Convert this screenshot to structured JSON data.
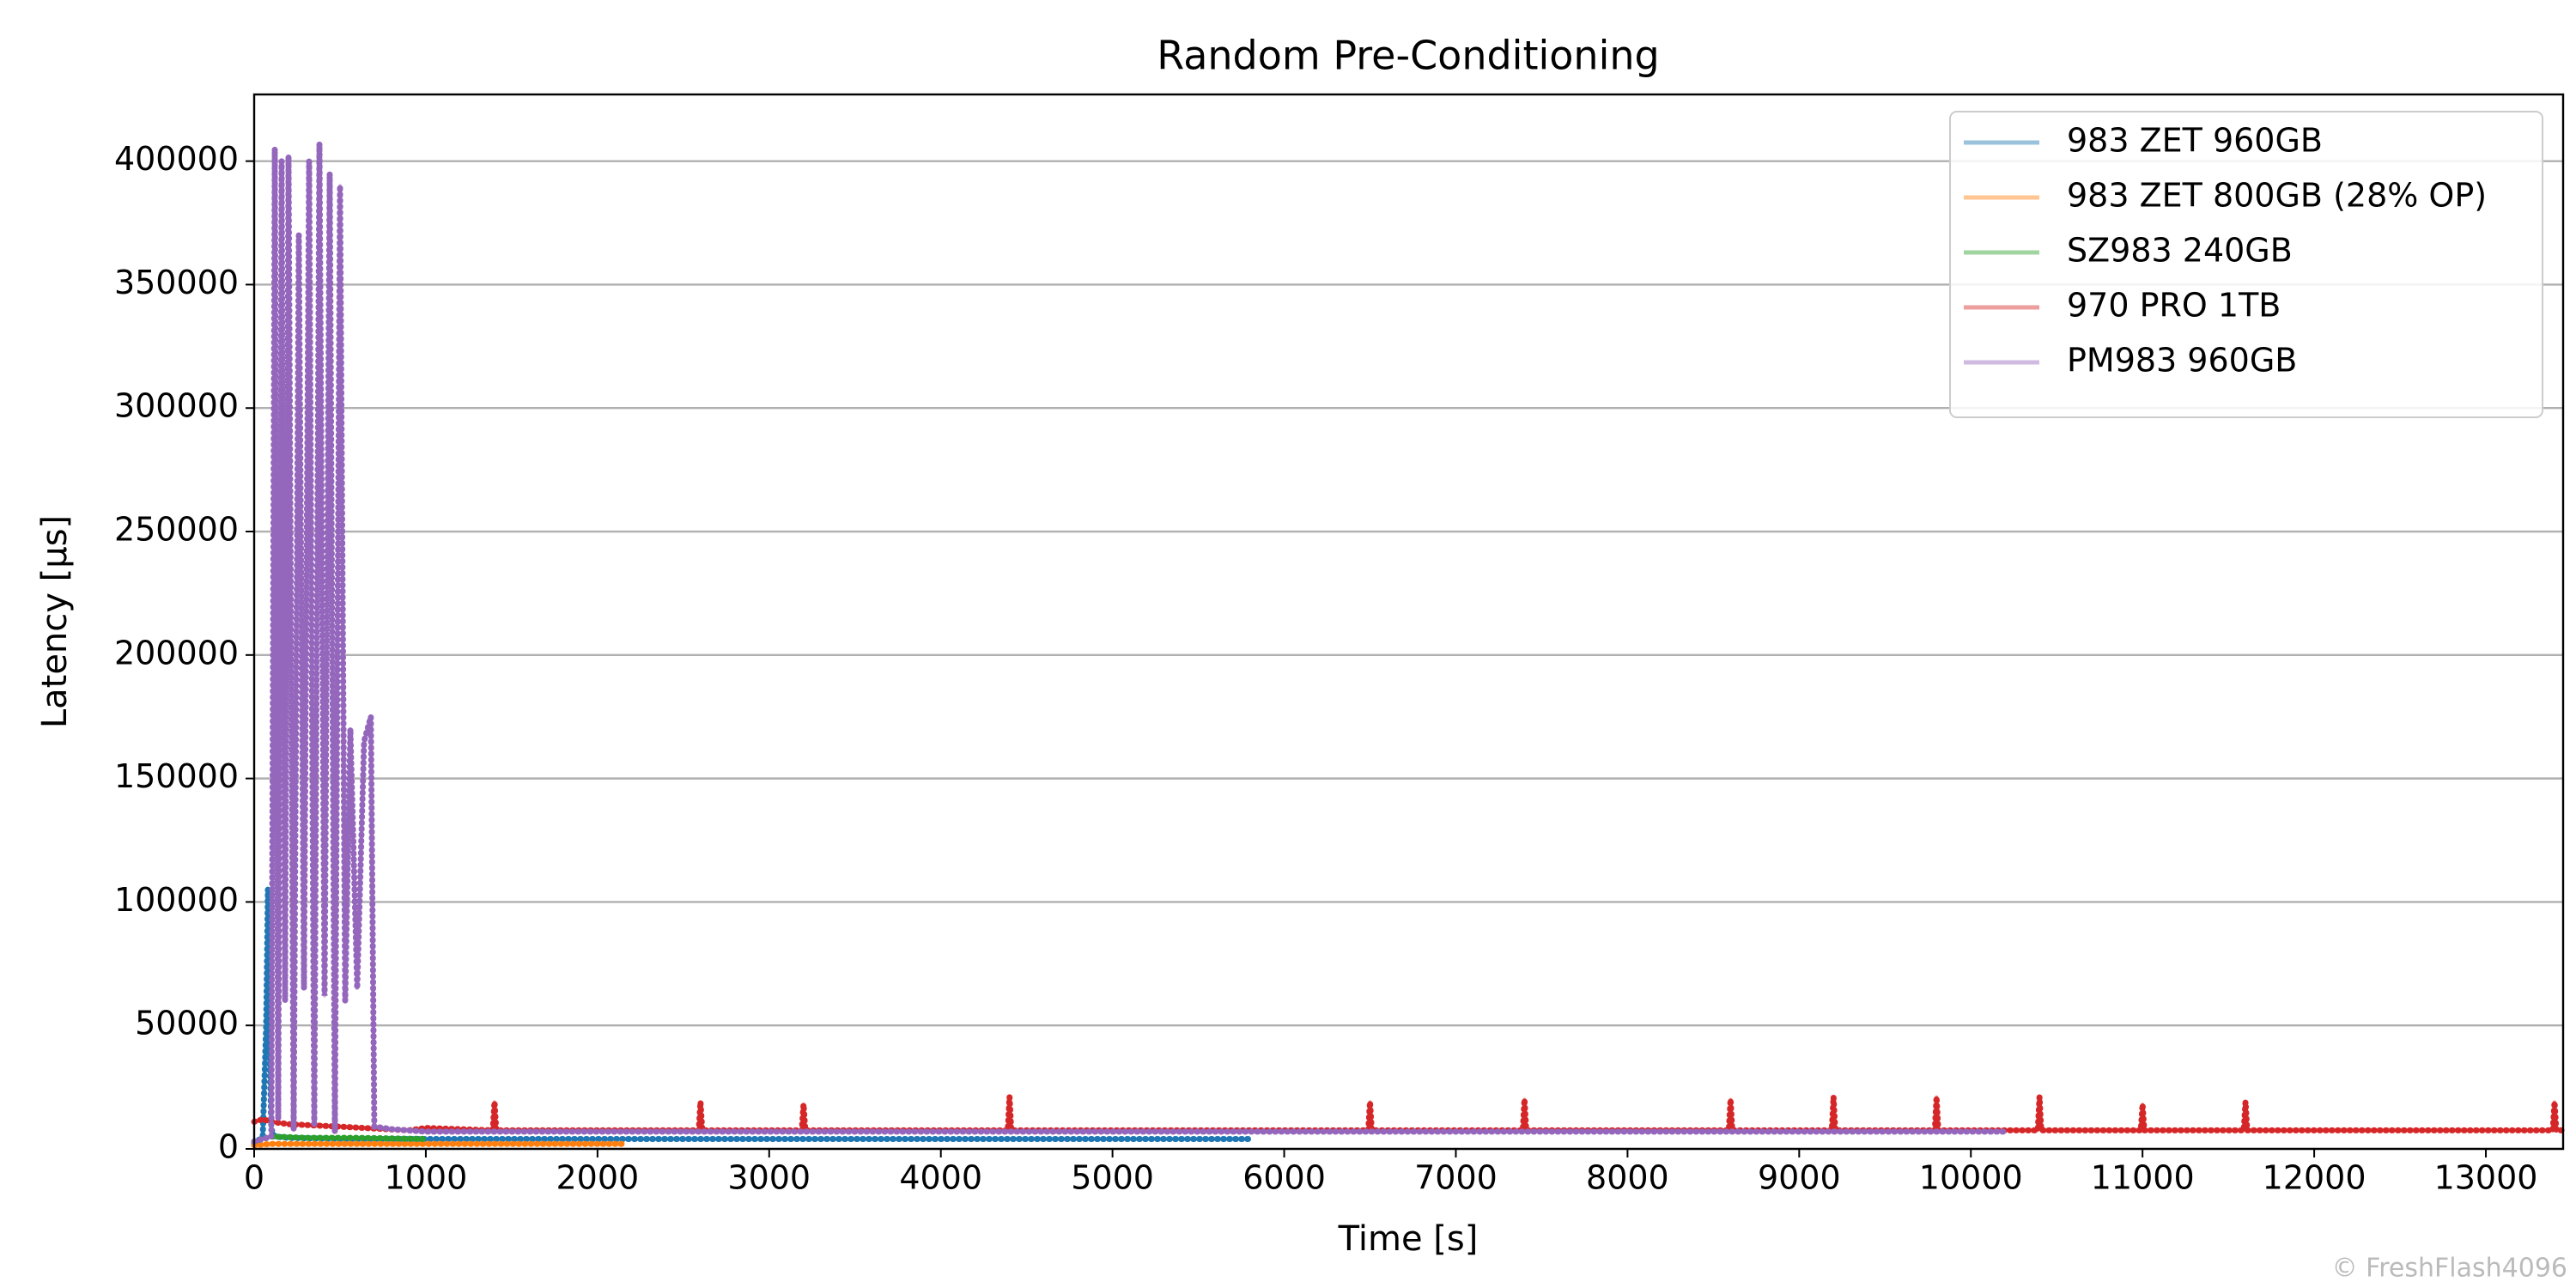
{
  "chart_data": {
    "type": "line",
    "title": "Random Pre-Conditioning",
    "x_label": "Time [s]",
    "y_label": "Latency [µs]",
    "watermark": "© FreshFlash4096",
    "xlim": [
      0,
      13450
    ],
    "ylim": [
      0,
      427000
    ],
    "xticks": [
      0,
      1000,
      2000,
      3000,
      4000,
      5000,
      6000,
      7000,
      8000,
      9000,
      10000,
      11000,
      12000,
      13000
    ],
    "yticks": [
      0,
      50000,
      100000,
      150000,
      200000,
      250000,
      300000,
      350000,
      400000
    ],
    "grid": "y",
    "legend": "upper right",
    "series": [
      {
        "name": "983 ZET 960GB",
        "color": "#1f77b4",
        "x": [
          0,
          50,
          70,
          80,
          90,
          100,
          120,
          200,
          500,
          1000,
          3000,
          5800
        ],
        "values": [
          2000,
          5000,
          50000,
          105000,
          40000,
          8000,
          5000,
          4500,
          4000,
          4000,
          4000,
          4000
        ]
      },
      {
        "name": "983 ZET 800GB (28% OP)",
        "color": "#ff7f0e",
        "x": [
          0,
          100,
          500,
          1000,
          2150
        ],
        "values": [
          1500,
          2000,
          2000,
          2000,
          2000
        ]
      },
      {
        "name": "SZ983 240GB",
        "color": "#2ca02c",
        "x": [
          0,
          100,
          300,
          600,
          1000
        ],
        "values": [
          3000,
          5000,
          4500,
          4500,
          4000
        ]
      },
      {
        "name": "970 PRO 1TB",
        "color": "#d62728",
        "x": [
          0,
          50,
          100,
          200,
          500,
          900,
          1000,
          1390,
          1400,
          1410,
          2590,
          2600,
          2610,
          3190,
          3200,
          3210,
          4390,
          4400,
          4410,
          6490,
          6500,
          6510,
          7390,
          7400,
          7410,
          8590,
          8600,
          8610,
          9190,
          9200,
          9210,
          9790,
          9800,
          9810,
          10390,
          10400,
          10410,
          10990,
          11000,
          11010,
          11590,
          11600,
          11610,
          13390,
          13400,
          13410,
          13450
        ],
        "values": [
          11000,
          12000,
          11000,
          10000,
          9000,
          7500,
          8500,
          7500,
          19000,
          7500,
          7500,
          19000,
          7500,
          7500,
          18000,
          7500,
          7500,
          21000,
          7500,
          7500,
          19000,
          7500,
          7500,
          20000,
          7500,
          7500,
          20000,
          7500,
          7500,
          21000,
          7500,
          7500,
          21000,
          7500,
          7500,
          21000,
          7500,
          7500,
          18000,
          7500,
          7500,
          19000,
          7500,
          7500,
          19000,
          7500,
          7500
        ]
      },
      {
        "name": "PM983 960GB",
        "color": "#9467bd",
        "x": [
          0,
          100,
          120,
          140,
          160,
          180,
          200,
          230,
          260,
          290,
          320,
          350,
          380,
          410,
          440,
          470,
          500,
          530,
          560,
          600,
          640,
          680,
          700,
          800,
          1000,
          2000,
          4000,
          6000,
          8000,
          10200
        ],
        "values": [
          3000,
          5000,
          405000,
          12000,
          400000,
          60000,
          402000,
          8000,
          370000,
          65000,
          400000,
          10000,
          407000,
          62000,
          395000,
          7000,
          390000,
          60000,
          170000,
          65000,
          165000,
          175000,
          9000,
          8000,
          7000,
          7000,
          7000,
          7000,
          7000,
          7000
        ]
      }
    ]
  }
}
